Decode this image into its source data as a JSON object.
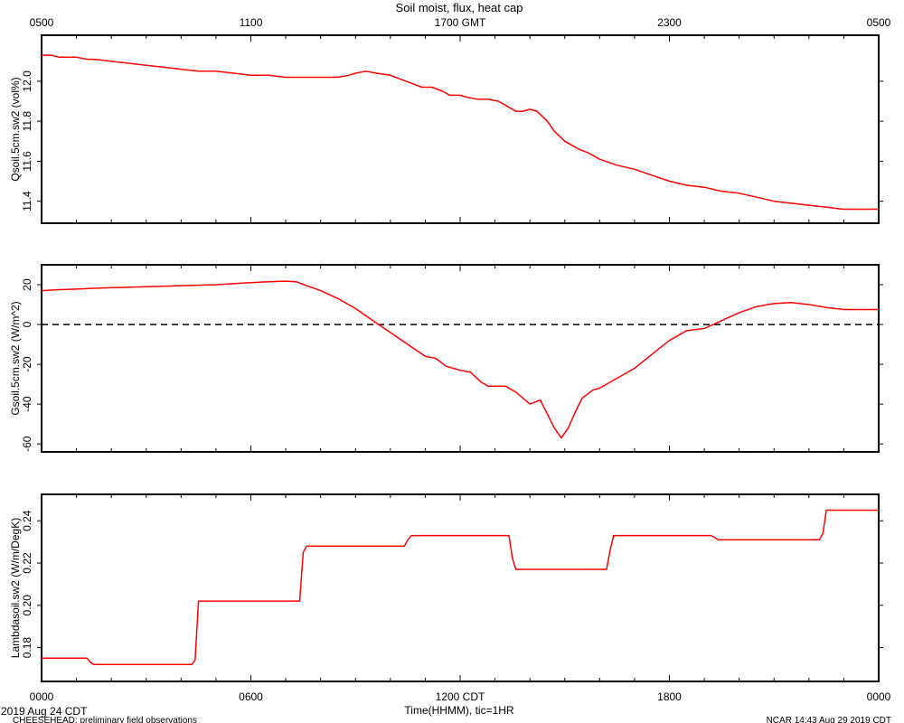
{
  "chart_data": {
    "type": "line",
    "title": "Soil moist, flux, heat cap",
    "top_axis_ticks": [
      "0500",
      "1100",
      "1700 GMT",
      "2300",
      "0500"
    ],
    "bottom_axis_ticks": [
      "0000",
      "0600",
      "1200 CDT",
      "1800",
      "0000"
    ],
    "xlabel": "Time(HHMM), tic=1HR",
    "start_date": "2019 Aug 24 CDT",
    "footer_left": "CHEESEHEAD: preliminary field observations",
    "footer_right": "NCAR 14:43 Aug 29 2019 CDT",
    "xlim_hours": [
      0,
      24
    ],
    "series_color": "#ff0000",
    "panels": [
      {
        "ylabel": "Qsoil.5cm.sw2 (vol%)",
        "ylim": [
          11.29,
          12.23
        ],
        "yticks": [
          11.4,
          11.6,
          11.8,
          12.0
        ],
        "ytick_labels": [
          "11.4",
          "11.6",
          "11.8",
          "12.0"
        ],
        "zero_line": false,
        "series": [
          {
            "x": [
              0,
              0.3,
              0.5,
              1.0,
              1.3,
              1.5,
              2.0,
              2.5,
              3.0,
              3.5,
              4.0,
              4.5,
              5.0,
              5.5,
              6.0,
              6.5,
              7.0,
              7.5,
              8.0,
              8.5,
              8.8,
              9.0,
              9.3,
              9.6,
              10.0,
              10.3,
              10.6,
              10.9,
              11.2,
              11.5,
              11.7,
              12.0,
              12.2,
              12.5,
              12.8,
              13.1,
              13.4,
              13.6,
              13.8,
              14.0,
              14.2,
              14.5,
              14.7,
              15.0,
              15.2,
              15.4,
              15.7,
              16.0,
              16.5,
              17.0,
              17.5,
              18.0,
              18.5,
              19.0,
              19.5,
              20.0,
              20.5,
              21.0,
              21.5,
              22.0,
              22.5,
              23.0,
              23.5,
              24.0
            ],
            "y": [
              12.13,
              12.13,
              12.12,
              12.12,
              12.11,
              12.11,
              12.1,
              12.09,
              12.08,
              12.07,
              12.06,
              12.05,
              12.05,
              12.04,
              12.03,
              12.03,
              12.02,
              12.02,
              12.02,
              12.02,
              12.03,
              12.04,
              12.05,
              12.04,
              12.03,
              12.01,
              11.99,
              11.97,
              11.97,
              11.95,
              11.93,
              11.93,
              11.92,
              11.91,
              11.91,
              11.9,
              11.87,
              11.85,
              11.85,
              11.86,
              11.85,
              11.8,
              11.75,
              11.7,
              11.68,
              11.66,
              11.64,
              11.61,
              11.58,
              11.56,
              11.53,
              11.5,
              11.48,
              11.47,
              11.45,
              11.44,
              11.42,
              11.4,
              11.39,
              11.38,
              11.37,
              11.36,
              11.36,
              11.36
            ]
          }
        ]
      },
      {
        "ylabel": "Gsoil.5cm.sw2 (W/m^2)",
        "ylim": [
          -64,
          30
        ],
        "yticks": [
          -60,
          -40,
          -20,
          0,
          20
        ],
        "ytick_labels": [
          "-60",
          "-40",
          "-20",
          "0",
          "20"
        ],
        "zero_line": true,
        "series": [
          {
            "x": [
              0,
              0.5,
              1.0,
              1.5,
              2.0,
              3.0,
              4.0,
              5.0,
              6.0,
              6.5,
              7.0,
              7.3,
              7.6,
              8.0,
              8.5,
              9.0,
              9.5,
              10.0,
              10.5,
              11.0,
              11.3,
              11.6,
              12.0,
              12.3,
              12.6,
              12.8,
              13.0,
              13.3,
              13.6,
              14.0,
              14.3,
              14.5,
              14.7,
              14.9,
              15.1,
              15.3,
              15.5,
              15.8,
              16.0,
              16.3,
              16.7,
              17.0,
              17.5,
              18.0,
              18.5,
              19.0,
              19.5,
              20.0,
              20.5,
              21.0,
              21.5,
              22.0,
              22.5,
              23.0,
              23.5,
              24.0
            ],
            "y": [
              17,
              17.5,
              17.8,
              18.2,
              18.5,
              19,
              19.5,
              20,
              21,
              21.5,
              21.8,
              21.5,
              19.5,
              17,
              13,
              8,
              2,
              -4,
              -10,
              -16,
              -17,
              -21,
              -23,
              -24,
              -29,
              -31,
              -31,
              -31,
              -34,
              -40,
              -38,
              -45,
              -52,
              -57,
              -52,
              -44,
              -37,
              -33,
              -32,
              -29,
              -25,
              -22,
              -15,
              -8,
              -3,
              -2,
              2,
              6,
              9,
              10.5,
              11,
              10,
              8.5,
              7.5,
              7.5,
              7.5
            ]
          }
        ]
      },
      {
        "ylabel": "Lambdasoil.sw2 (W/m/DegK)",
        "ylim": [
          0.164,
          0.2525
        ],
        "yticks": [
          0.18,
          0.2,
          0.22,
          0.24
        ],
        "ytick_labels": [
          "0.18",
          "0.20",
          "0.22",
          "0.24"
        ],
        "zero_line": false,
        "series": [
          {
            "x": [
              0,
              1.3,
              1.4,
              1.5,
              4.3,
              4.4,
              4.5,
              7.4,
              7.5,
              7.6,
              10.4,
              10.5,
              10.6,
              13.4,
              13.5,
              13.6,
              16.2,
              16.3,
              16.4,
              19.2,
              19.3,
              19.4,
              22.3,
              22.4,
              22.5,
              24.0
            ],
            "y": [
              0.175,
              0.175,
              0.173,
              0.172,
              0.172,
              0.174,
              0.202,
              0.202,
              0.225,
              0.228,
              0.228,
              0.231,
              0.233,
              0.233,
              0.222,
              0.217,
              0.217,
              0.226,
              0.233,
              0.233,
              0.232,
              0.231,
              0.231,
              0.234,
              0.245,
              0.245
            ]
          }
        ]
      }
    ]
  }
}
